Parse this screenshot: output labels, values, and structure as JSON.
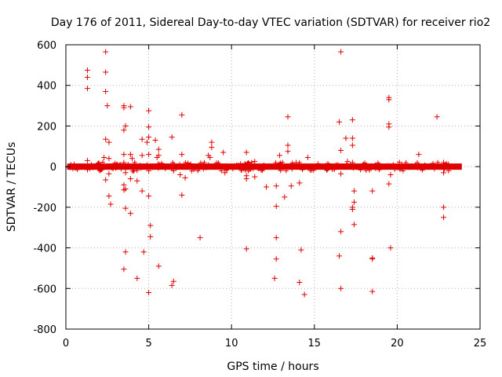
{
  "chart_data": {
    "type": "scatter",
    "title": "Day 176 of 2011, Sidereal Day-to-day VTEC variation (SDTVAR) for receiver rio2",
    "xlabel": "GPS time / hours",
    "ylabel": "SDTVAR / TECUs",
    "xlim": [
      0,
      25
    ],
    "ylim": [
      -800,
      600
    ],
    "xticks": [
      0,
      5,
      10,
      15,
      20,
      25
    ],
    "yticks": [
      -800,
      -600,
      -400,
      -200,
      0,
      200,
      400,
      600
    ],
    "marker": "+",
    "color": "#e00000",
    "grid": true,
    "series": [
      {
        "name": "SDTVAR",
        "band": {
          "x_start": 0.1,
          "x_end": 23.9,
          "y_min": -10,
          "y_max": 10
        },
        "points": [
          [
            1.3,
            475
          ],
          [
            1.3,
            440
          ],
          [
            1.3,
            385
          ],
          [
            1.3,
            30
          ],
          [
            1.3,
            -15
          ],
          [
            2.4,
            565
          ],
          [
            2.4,
            465
          ],
          [
            2.4,
            370
          ],
          [
            2.5,
            300
          ],
          [
            2.4,
            135
          ],
          [
            2.3,
            45
          ],
          [
            2.4,
            -65
          ],
          [
            2.6,
            120
          ],
          [
            2.6,
            40
          ],
          [
            2.6,
            -35
          ],
          [
            2.6,
            -145
          ],
          [
            2.7,
            -185
          ],
          [
            3.5,
            300
          ],
          [
            3.5,
            290
          ],
          [
            3.6,
            200
          ],
          [
            3.5,
            180
          ],
          [
            3.5,
            60
          ],
          [
            3.5,
            20
          ],
          [
            3.6,
            -30
          ],
          [
            3.5,
            -90
          ],
          [
            3.6,
            -110
          ],
          [
            3.5,
            -115
          ],
          [
            3.6,
            -205
          ],
          [
            3.6,
            -420
          ],
          [
            3.5,
            -505
          ],
          [
            3.9,
            295
          ],
          [
            3.9,
            60
          ],
          [
            4.0,
            40
          ],
          [
            3.9,
            -60
          ],
          [
            3.9,
            -230
          ],
          [
            4.3,
            -70
          ],
          [
            4.3,
            -550
          ],
          [
            4.6,
            135
          ],
          [
            4.6,
            55
          ],
          [
            4.7,
            -420
          ],
          [
            4.6,
            -120
          ],
          [
            5.0,
            275
          ],
          [
            5.0,
            195
          ],
          [
            5.0,
            145
          ],
          [
            4.9,
            120
          ],
          [
            5.0,
            60
          ],
          [
            5.0,
            -20
          ],
          [
            5.0,
            -145
          ],
          [
            5.1,
            -290
          ],
          [
            5.1,
            -345
          ],
          [
            5.0,
            -620
          ],
          [
            5.4,
            130
          ],
          [
            5.6,
            85
          ],
          [
            5.6,
            55
          ],
          [
            5.5,
            45
          ],
          [
            5.6,
            -490
          ],
          [
            6.4,
            145
          ],
          [
            6.5,
            -20
          ],
          [
            6.5,
            -565
          ],
          [
            6.4,
            -585
          ],
          [
            7.0,
            255
          ],
          [
            7.0,
            60
          ],
          [
            6.9,
            -40
          ],
          [
            7.0,
            -140
          ],
          [
            7.2,
            -55
          ],
          [
            8.1,
            -350
          ],
          [
            8.8,
            120
          ],
          [
            8.8,
            95
          ],
          [
            8.6,
            55
          ],
          [
            8.7,
            45
          ],
          [
            9.5,
            70
          ],
          [
            9.6,
            -30
          ],
          [
            10.9,
            70
          ],
          [
            10.9,
            -45
          ],
          [
            10.9,
            -60
          ],
          [
            10.9,
            -405
          ],
          [
            11.4,
            25
          ],
          [
            11.4,
            -50
          ],
          [
            12.1,
            -100
          ],
          [
            12.7,
            -95
          ],
          [
            12.7,
            -195
          ],
          [
            12.7,
            -350
          ],
          [
            12.7,
            -455
          ],
          [
            12.6,
            -550
          ],
          [
            12.9,
            55
          ],
          [
            13.2,
            -150
          ],
          [
            13.4,
            245
          ],
          [
            13.4,
            105
          ],
          [
            13.4,
            75
          ],
          [
            13.6,
            -95
          ],
          [
            13.9,
            20
          ],
          [
            14.1,
            -80
          ],
          [
            14.2,
            -410
          ],
          [
            14.1,
            -570
          ],
          [
            14.4,
            -630
          ],
          [
            14.6,
            45
          ],
          [
            16.5,
            220
          ],
          [
            16.6,
            565
          ],
          [
            16.6,
            80
          ],
          [
            16.6,
            -35
          ],
          [
            16.6,
            -320
          ],
          [
            16.5,
            -440
          ],
          [
            16.6,
            -600
          ],
          [
            16.9,
            140
          ],
          [
            17.0,
            25
          ],
          [
            17.3,
            230
          ],
          [
            17.3,
            140
          ],
          [
            17.3,
            105
          ],
          [
            17.3,
            20
          ],
          [
            17.4,
            -120
          ],
          [
            17.4,
            -175
          ],
          [
            17.3,
            -200
          ],
          [
            17.3,
            -210
          ],
          [
            17.4,
            -285
          ],
          [
            18.5,
            -120
          ],
          [
            18.5,
            -450
          ],
          [
            18.5,
            -455
          ],
          [
            18.5,
            -615
          ],
          [
            19.5,
            340
          ],
          [
            19.5,
            330
          ],
          [
            19.5,
            210
          ],
          [
            19.5,
            195
          ],
          [
            19.6,
            -40
          ],
          [
            19.5,
            -85
          ],
          [
            19.6,
            -400
          ],
          [
            21.3,
            60
          ],
          [
            22.4,
            245
          ],
          [
            22.8,
            20
          ],
          [
            22.8,
            -30
          ],
          [
            22.8,
            -200
          ],
          [
            22.8,
            -250
          ],
          [
            23.1,
            -20
          ]
        ]
      }
    ]
  }
}
